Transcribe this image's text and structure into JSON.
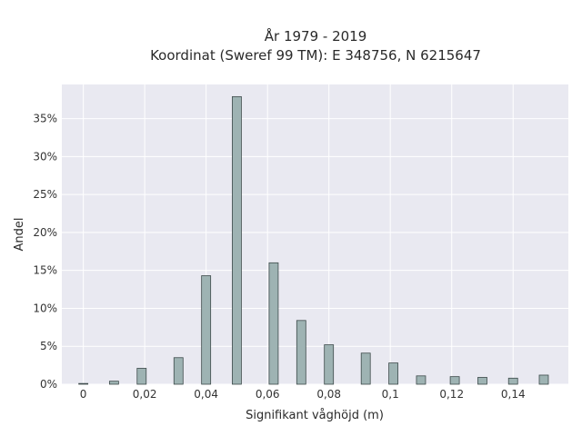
{
  "chart_data": {
    "type": "bar",
    "title": "År 1979 - 2019",
    "subtitle": "Koordinat (Sweref 99 TM): E 348756, N 6215647",
    "xlabel": "Signifikant våghöjd (m)",
    "ylabel": "Andel",
    "xlim": [
      -0.007,
      0.158
    ],
    "ylim": [
      0,
      0.395
    ],
    "x_ticks": [
      0,
      0.02,
      0.04,
      0.06,
      0.08,
      0.1,
      0.12,
      0.14
    ],
    "x_tick_labels": [
      "0",
      "0,02",
      "0,04",
      "0,06",
      "0,08",
      "0,1",
      "0,12",
      "0,14"
    ],
    "y_ticks": [
      0,
      0.05,
      0.1,
      0.15,
      0.2,
      0.25,
      0.3,
      0.35
    ],
    "y_tick_labels": [
      "0%",
      "5%",
      "10%",
      "15%",
      "20%",
      "25%",
      "30%",
      "35%"
    ],
    "grid": true,
    "legend": "none",
    "x": [
      0.0,
      0.01,
      0.019,
      0.031,
      0.04,
      0.05,
      0.062,
      0.071,
      0.08,
      0.092,
      0.101,
      0.11,
      0.121,
      0.13,
      0.14,
      0.15
    ],
    "values": [
      0.001,
      0.004,
      0.021,
      0.035,
      0.143,
      0.379,
      0.16,
      0.084,
      0.052,
      0.041,
      0.028,
      0.011,
      0.01,
      0.009,
      0.008,
      0.012
    ]
  }
}
